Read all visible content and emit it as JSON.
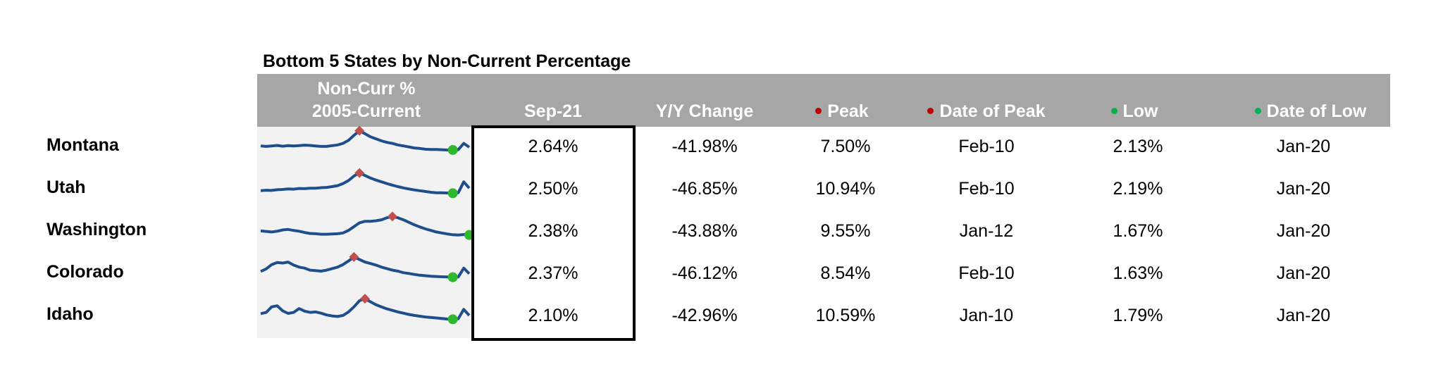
{
  "title": "Bottom 5 States by Non-Current Percentage",
  "headers": {
    "sparkline_line1": "Non-Curr %",
    "sparkline_line2": "2005-Current",
    "sep21": "Sep-21",
    "yoy": "Y/Y Change",
    "peak": "Peak",
    "date_of_peak": "Date of Peak",
    "low": "Low",
    "date_of_low": "Date of Low"
  },
  "colors": {
    "header_bg": "#a6a6a6",
    "sparkline": "#1f4e8c",
    "peak_marker": "#c0504d",
    "low_marker": "#2eb82e",
    "peak_dot": "#c00000",
    "low_dot": "#00b050"
  },
  "rows": [
    {
      "state": "Montana",
      "sep21": "2.64%",
      "yoy": "-41.98%",
      "peak": "7.50%",
      "date_of_peak": "Feb-10",
      "low": "2.13%",
      "date_of_low": "Jan-20"
    },
    {
      "state": "Utah",
      "sep21": "2.50%",
      "yoy": "-46.85%",
      "peak": "10.94%",
      "date_of_peak": "Feb-10",
      "low": "2.19%",
      "date_of_low": "Jan-20"
    },
    {
      "state": "Washington",
      "sep21": "2.38%",
      "yoy": "-43.88%",
      "peak": "9.55%",
      "date_of_peak": "Jan-12",
      "low": "1.67%",
      "date_of_low": "Jan-20"
    },
    {
      "state": "Colorado",
      "sep21": "2.37%",
      "yoy": "-46.12%",
      "peak": "8.54%",
      "date_of_peak": "Feb-10",
      "low": "1.63%",
      "date_of_low": "Jan-20"
    },
    {
      "state": "Idaho",
      "sep21": "2.10%",
      "yoy": "-42.96%",
      "peak": "10.59%",
      "date_of_peak": "Jan-10",
      "low": "1.79%",
      "date_of_low": "Jan-20"
    }
  ],
  "chart_data": {
    "type": "table",
    "title": "Bottom 5 States by Non-Current Percentage",
    "columns": [
      "Non-Curr % 2005-Current",
      "Sep-21",
      "Y/Y Change",
      "Peak",
      "Date of Peak",
      "Low",
      "Date of Low"
    ],
    "sparkline_markers": [
      "peak",
      "low"
    ],
    "sparklines": [
      {
        "state": "Montana",
        "values": [
          0.3,
          0.28,
          0.3,
          0.32,
          0.29,
          0.31,
          0.3,
          0.31,
          0.33,
          0.32,
          0.3,
          0.28,
          0.28,
          0.31,
          0.34,
          0.4,
          0.52,
          0.72,
          0.9,
          0.78,
          0.66,
          0.58,
          0.5,
          0.44,
          0.4,
          0.34,
          0.3,
          0.26,
          0.22,
          0.2,
          0.17,
          0.16,
          0.16,
          0.15,
          0.14,
          0.14,
          0.15,
          0.4,
          0.25
        ]
      },
      {
        "state": "Utah",
        "values": [
          0.2,
          0.22,
          0.21,
          0.24,
          0.25,
          0.27,
          0.26,
          0.29,
          0.28,
          0.3,
          0.3,
          0.32,
          0.33,
          0.36,
          0.4,
          0.48,
          0.6,
          0.78,
          0.9,
          0.8,
          0.7,
          0.62,
          0.55,
          0.48,
          0.42,
          0.36,
          0.31,
          0.27,
          0.23,
          0.2,
          0.17,
          0.14,
          0.12,
          0.12,
          0.11,
          0.1,
          0.12,
          0.55,
          0.3
        ]
      },
      {
        "state": "Washington",
        "values": [
          0.28,
          0.26,
          0.24,
          0.27,
          0.32,
          0.34,
          0.3,
          0.27,
          0.22,
          0.18,
          0.17,
          0.15,
          0.15,
          0.16,
          0.17,
          0.2,
          0.3,
          0.45,
          0.6,
          0.66,
          0.66,
          0.68,
          0.72,
          0.8,
          0.85,
          0.8,
          0.72,
          0.62,
          0.52,
          0.44,
          0.36,
          0.3,
          0.24,
          0.2,
          0.16,
          0.13,
          0.12,
          0.14,
          0.12
        ]
      },
      {
        "state": "Colorado",
        "values": [
          0.35,
          0.45,
          0.62,
          0.7,
          0.68,
          0.72,
          0.6,
          0.52,
          0.48,
          0.4,
          0.38,
          0.36,
          0.4,
          0.46,
          0.52,
          0.62,
          0.76,
          0.92,
          0.82,
          0.72,
          0.66,
          0.6,
          0.52,
          0.46,
          0.4,
          0.36,
          0.3,
          0.27,
          0.23,
          0.2,
          0.18,
          0.16,
          0.15,
          0.14,
          0.13,
          0.12,
          0.13,
          0.48,
          0.26
        ]
      },
      {
        "state": "Idaho",
        "values": [
          0.35,
          0.4,
          0.62,
          0.66,
          0.46,
          0.36,
          0.4,
          0.55,
          0.45,
          0.4,
          0.42,
          0.37,
          0.3,
          0.26,
          0.24,
          0.28,
          0.42,
          0.62,
          0.86,
          0.94,
          0.82,
          0.7,
          0.62,
          0.54,
          0.48,
          0.42,
          0.37,
          0.32,
          0.28,
          0.25,
          0.22,
          0.2,
          0.18,
          0.16,
          0.14,
          0.13,
          0.15,
          0.52,
          0.28
        ]
      }
    ]
  }
}
